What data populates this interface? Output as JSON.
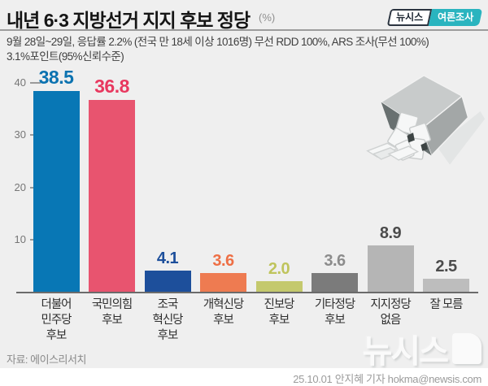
{
  "header": {
    "title": "내년 6·3 지방선거 지지 후보 정당",
    "unit": "(%)",
    "badge_newsis": "뉴시스",
    "badge_poll": "여론조사"
  },
  "subtitle": {
    "line1": "9월 28일~29일, 응답률 2.2% (전국 만 18세 이상 1016명) 무선 RDD 100%, ARS 조사(무선 100%)",
    "line2": "3.1%포인트(95%신뢰수준)"
  },
  "chart_data": {
    "type": "bar",
    "title": "내년 6·3 지방선거 지지 후보 정당",
    "unit": "%",
    "categories": [
      [
        "더불어",
        "민주당",
        "후보"
      ],
      [
        "국민의힘",
        "후보"
      ],
      [
        "조국",
        "혁신당",
        "후보"
      ],
      [
        "개혁신당",
        "후보"
      ],
      [
        "진보당",
        "후보"
      ],
      [
        "기타정당",
        "후보"
      ],
      [
        "지지정당",
        "없음"
      ],
      [
        "잘 모름"
      ]
    ],
    "values": [
      38.5,
      36.8,
      4.1,
      3.6,
      2.0,
      3.6,
      8.9,
      2.5
    ],
    "value_labels": [
      "38.5",
      "36.8",
      "4.1",
      "3.6",
      "2.0",
      "3.6",
      "8.9",
      "2.5"
    ],
    "bar_colors": [
      "#0877b5",
      "#e8546f",
      "#1d4f9b",
      "#ee7b51",
      "#c4c96d",
      "#7b7b7b",
      "#b5b5b5",
      "#bdbdbd"
    ],
    "label_colors": [
      "#0b72b0",
      "#e8385f",
      "#1d4f9b",
      "#ee6f45",
      "#bfc45c",
      "#8c8c8c",
      "#4b4b4b",
      "#4b4b4b"
    ],
    "yticks": [
      40,
      30,
      20,
      10
    ],
    "ylim": [
      0,
      43
    ],
    "grid": false,
    "legend": false,
    "xlabel": "",
    "ylabel": ""
  },
  "footer": {
    "source": "자료: 에이스리서치",
    "credit": "25.10.01 안지혜 기자 hokma@newsis.com",
    "watermark": "뉴시스"
  }
}
